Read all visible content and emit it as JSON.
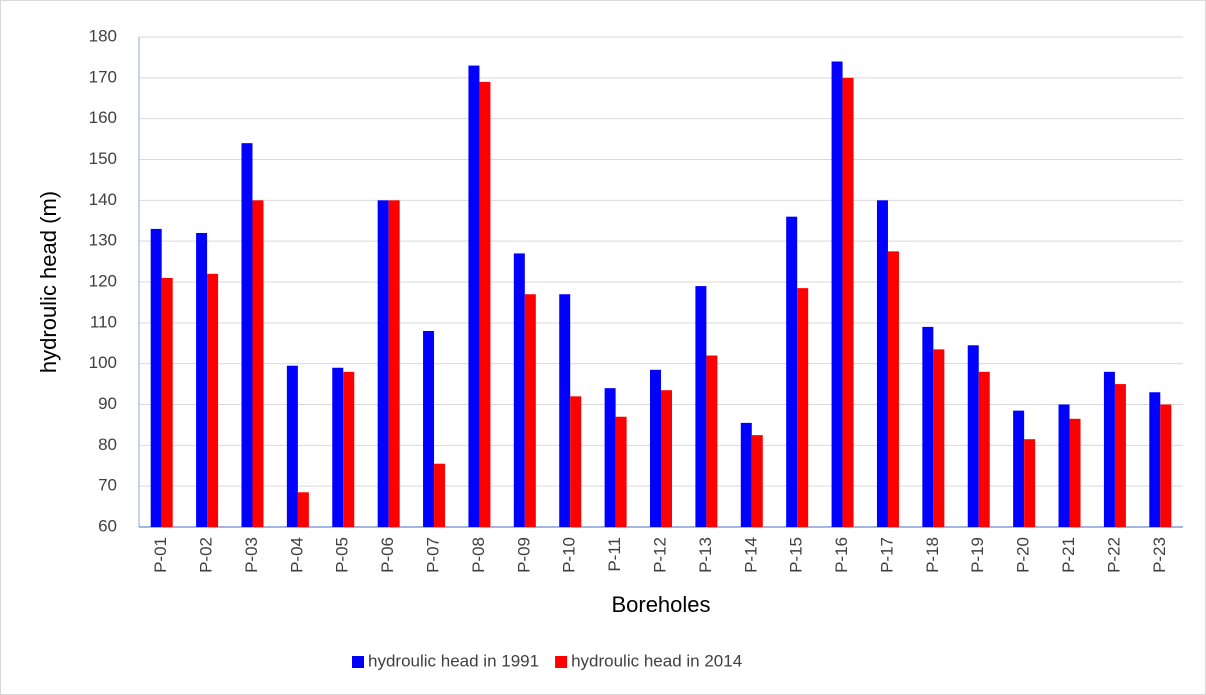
{
  "chart_data": {
    "type": "bar",
    "x_label": "Boreholes",
    "y_label": "hydroulic head (m)",
    "categories": [
      "P-01",
      "P-02",
      "P-03",
      "P-04",
      "P-05",
      "P-06",
      "P-07",
      "P-08",
      "P-09",
      "P-10",
      "P-11",
      "P-12",
      "P-13",
      "P-14",
      "P-15",
      "P-16",
      "P-17",
      "P-18",
      "P-19",
      "P-20",
      "P-21",
      "P-22",
      "P-23"
    ],
    "series": [
      {
        "name": "hydroulic head in 1991",
        "color": "#0000ff",
        "values": [
          133,
          132,
          154,
          99.5,
          99,
          140,
          108,
          173,
          127,
          117,
          94,
          98.5,
          119,
          85.5,
          136,
          174,
          140,
          109,
          104.5,
          88.5,
          90,
          98,
          93
        ]
      },
      {
        "name": "hydroulic head in 2014",
        "color": "#ff0000",
        "values": [
          121,
          122,
          140,
          68.5,
          98,
          140,
          75.5,
          169,
          117,
          92,
          87,
          93.5,
          102,
          82.5,
          118.5,
          170,
          127.5,
          103.5,
          98,
          81.5,
          86.5,
          95,
          90
        ]
      }
    ],
    "ylim": [
      60,
      180
    ],
    "yticks": [
      60,
      70,
      80,
      90,
      100,
      110,
      120,
      130,
      140,
      150,
      160,
      170,
      180
    ],
    "grid": true,
    "legend": "bottom"
  }
}
